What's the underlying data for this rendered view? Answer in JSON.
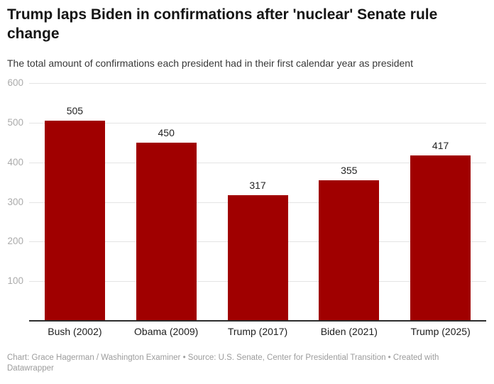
{
  "header": {
    "title": "Trump laps Biden in confirmations after 'nuclear' Senate rule change",
    "subtitle": "The total amount of confirmations each president had in their first calendar year as president"
  },
  "chart_data": {
    "type": "bar",
    "title": "Trump laps Biden in confirmations after 'nuclear' Senate rule change",
    "subtitle": "The total amount of confirmations each president had in their first calendar year as president",
    "categories": [
      "Bush (2002)",
      "Obama (2009)",
      "Trump (2017)",
      "Biden (2021)",
      "Trump (2025)"
    ],
    "values": [
      505,
      450,
      317,
      355,
      417
    ],
    "data_labels": [
      "505",
      "450",
      "317",
      "355",
      "417"
    ],
    "xlabel": "",
    "ylabel": "",
    "ylim": [
      0,
      600
    ],
    "yticks": [
      100,
      200,
      300,
      400,
      500,
      600
    ],
    "grid": "horizontal",
    "legend": "none",
    "bar_color": "#a00000"
  },
  "colors": {
    "bar": "#a00000",
    "gridline": "#e4e4e4",
    "axis_line": "#2d2d2d",
    "ytick_text": "#ababab",
    "title_text": "#151515",
    "footer_text": "#9c9c9c"
  },
  "footer": {
    "credit": "Chart: Grace Hagerman / Washington Examiner • Source: U.S. Senate, Center for Presidential Transition • Created with Datawrapper"
  }
}
